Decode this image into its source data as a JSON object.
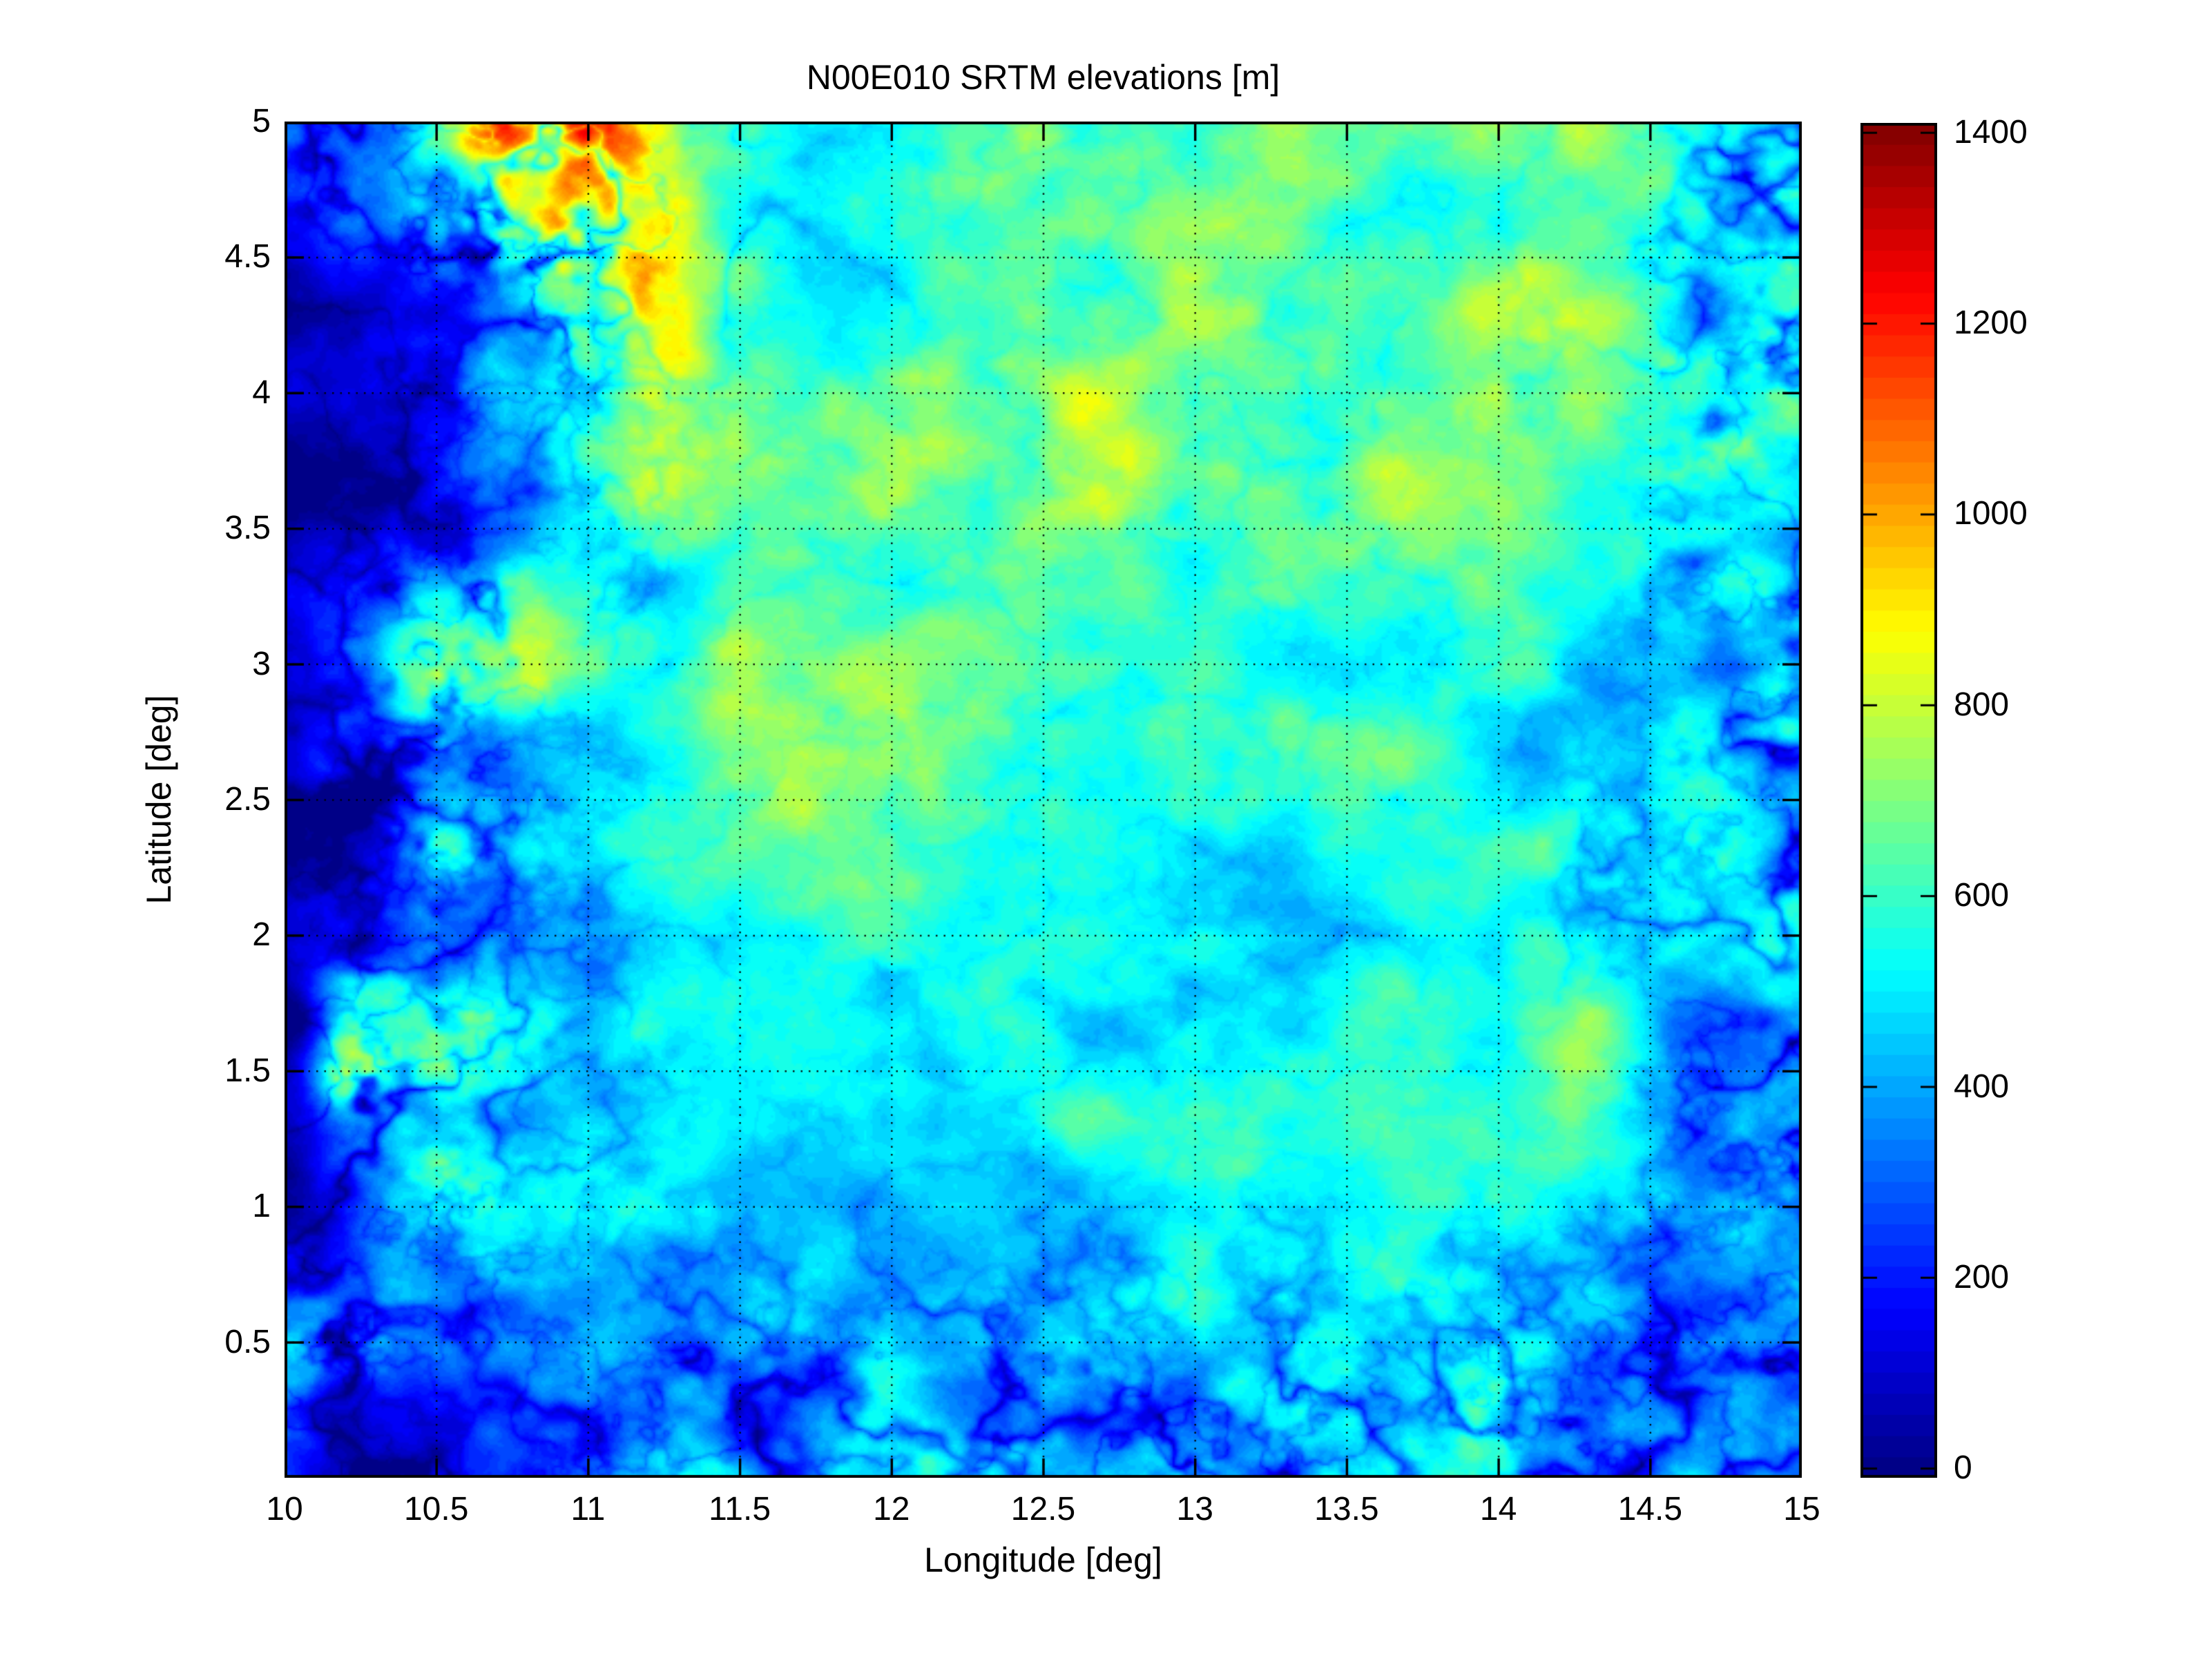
{
  "figure": {
    "background_color": "#ffffff",
    "text_color": "#000000"
  },
  "chart_data": {
    "type": "heatmap",
    "title": "N00E010 SRTM elevations [m]",
    "xlabel": "Longitude [deg]",
    "ylabel": "Latitude [deg]",
    "xlim": [
      10,
      15
    ],
    "ylim": [
      0,
      5
    ],
    "grid": "dotted black, 0.5 deg spacing, on",
    "colormap": "jet (64 discrete bands)",
    "xticks": [
      {
        "value": 10,
        "label": "10"
      },
      {
        "value": 10.5,
        "label": "10.5"
      },
      {
        "value": 11,
        "label": "11"
      },
      {
        "value": 11.5,
        "label": "11.5"
      },
      {
        "value": 12,
        "label": "12"
      },
      {
        "value": 12.5,
        "label": "12.5"
      },
      {
        "value": 13,
        "label": "13"
      },
      {
        "value": 13.5,
        "label": "13.5"
      },
      {
        "value": 14,
        "label": "14"
      },
      {
        "value": 14.5,
        "label": "14.5"
      },
      {
        "value": 15,
        "label": "15"
      }
    ],
    "yticks": [
      {
        "value": 0.5,
        "label": "0.5"
      },
      {
        "value": 1,
        "label": "1"
      },
      {
        "value": 1.5,
        "label": "1.5"
      },
      {
        "value": 2,
        "label": "2"
      },
      {
        "value": 2.5,
        "label": "2.5"
      },
      {
        "value": 3,
        "label": "3"
      },
      {
        "value": 3.5,
        "label": "3.5"
      },
      {
        "value": 4,
        "label": "4"
      },
      {
        "value": 4.5,
        "label": "4.5"
      },
      {
        "value": 5,
        "label": "5"
      }
    ],
    "colorbar": {
      "units": "m",
      "min": 0,
      "max": 1400,
      "displayed_range": [
        -10,
        1410
      ],
      "bands": 64,
      "ticks": [
        {
          "value": 0,
          "label": "0"
        },
        {
          "value": 200,
          "label": "200"
        },
        {
          "value": 400,
          "label": "400"
        },
        {
          "value": 600,
          "label": "600"
        },
        {
          "value": 800,
          "label": "800"
        },
        {
          "value": 1000,
          "label": "1000"
        },
        {
          "value": 1200,
          "label": "1200"
        },
        {
          "value": 1400,
          "label": "1400"
        }
      ]
    },
    "elevation_grid": {
      "comment": "coarse elevations in meters read off the map, lat rows descending 5 to 0, lon cols 10 to 15, 0.25 deg step",
      "lon": [
        10,
        10.25,
        10.5,
        10.75,
        11,
        11.25,
        11.5,
        11.75,
        12,
        12.25,
        12.5,
        12.75,
        13,
        13.25,
        13.5,
        13.75,
        14,
        14.25,
        14.5,
        14.75,
        15
      ],
      "lat": [
        5,
        4.75,
        4.5,
        4.25,
        4,
        3.75,
        3.5,
        3.25,
        3,
        2.75,
        2.5,
        2.25,
        2,
        1.75,
        1.5,
        1.25,
        1,
        0.75,
        0.5,
        0.25,
        0
      ],
      "values_m": [
        [
          420,
          380,
          600,
          1000,
          1100,
          800,
          650,
          560,
          600,
          650,
          680,
          700,
          700,
          680,
          660,
          680,
          720,
          700,
          660,
          640,
          600
        ],
        [
          200,
          250,
          400,
          800,
          1050,
          850,
          600,
          520,
          560,
          620,
          660,
          680,
          680,
          660,
          650,
          660,
          700,
          680,
          640,
          600,
          560
        ],
        [
          120,
          200,
          350,
          700,
          950,
          900,
          580,
          480,
          540,
          600,
          640,
          660,
          660,
          650,
          640,
          660,
          690,
          660,
          620,
          570,
          520
        ],
        [
          80,
          150,
          280,
          500,
          750,
          820,
          560,
          500,
          550,
          600,
          640,
          680,
          700,
          660,
          650,
          680,
          700,
          720,
          620,
          560,
          500
        ],
        [
          60,
          120,
          220,
          400,
          650,
          780,
          700,
          600,
          640,
          660,
          700,
          720,
          700,
          700,
          700,
          710,
          720,
          700,
          640,
          560,
          480
        ],
        [
          50,
          100,
          180,
          350,
          600,
          750,
          720,
          660,
          660,
          680,
          700,
          720,
          720,
          710,
          700,
          700,
          700,
          680,
          620,
          540,
          470
        ],
        [
          50,
          90,
          160,
          300,
          550,
          700,
          680,
          640,
          650,
          660,
          680,
          700,
          700,
          690,
          680,
          670,
          650,
          620,
          580,
          510,
          450
        ],
        [
          60,
          150,
          400,
          750,
          620,
          560,
          650,
          660,
          650,
          650,
          660,
          670,
          680,
          670,
          650,
          630,
          610,
          580,
          540,
          490,
          450
        ],
        [
          80,
          300,
          650,
          700,
          520,
          520,
          750,
          700,
          680,
          670,
          660,
          650,
          650,
          640,
          620,
          600,
          580,
          550,
          510,
          460,
          430
        ],
        [
          70,
          280,
          600,
          520,
          480,
          550,
          700,
          720,
          700,
          700,
          680,
          650,
          630,
          620,
          600,
          580,
          560,
          540,
          510,
          470,
          440
        ],
        [
          60,
          250,
          550,
          480,
          490,
          560,
          650,
          700,
          680,
          660,
          640,
          620,
          600,
          590,
          570,
          550,
          540,
          550,
          540,
          470,
          430
        ],
        [
          50,
          180,
          480,
          470,
          500,
          540,
          580,
          620,
          620,
          610,
          590,
          580,
          560,
          550,
          540,
          530,
          540,
          620,
          460,
          420,
          430
        ],
        [
          40,
          130,
          380,
          440,
          490,
          520,
          550,
          570,
          570,
          560,
          560,
          550,
          540,
          530,
          520,
          520,
          530,
          640,
          440,
          400,
          450
        ],
        [
          40,
          500,
          500,
          460,
          480,
          510,
          530,
          550,
          550,
          540,
          540,
          530,
          540,
          560,
          540,
          560,
          540,
          660,
          480,
          430,
          460
        ],
        [
          150,
          900,
          620,
          480,
          500,
          510,
          520,
          530,
          530,
          520,
          530,
          540,
          560,
          600,
          550,
          540,
          560,
          680,
          500,
          450,
          470
        ],
        [
          80,
          450,
          620,
          540,
          520,
          530,
          530,
          520,
          510,
          510,
          520,
          530,
          550,
          570,
          545,
          560,
          600,
          650,
          520,
          470,
          480
        ],
        [
          50,
          250,
          520,
          550,
          520,
          520,
          530,
          500,
          450,
          470,
          490,
          520,
          540,
          560,
          540,
          550,
          560,
          540,
          510,
          480,
          460
        ],
        [
          300,
          250,
          350,
          490,
          500,
          470,
          480,
          460,
          430,
          450,
          470,
          500,
          510,
          520,
          530,
          540,
          540,
          500,
          470,
          450,
          430
        ],
        [
          450,
          400,
          280,
          330,
          420,
          440,
          450,
          430,
          420,
          440,
          460,
          480,
          490,
          500,
          510,
          520,
          510,
          470,
          440,
          430,
          420
        ],
        [
          250,
          150,
          150,
          250,
          350,
          400,
          420,
          400,
          410,
          430,
          450,
          470,
          480,
          490,
          500,
          500,
          490,
          450,
          420,
          410,
          400
        ],
        [
          200,
          150,
          120,
          200,
          300,
          370,
          400,
          410,
          420,
          440,
          460,
          470,
          480,
          480,
          490,
          490,
          480,
          430,
          410,
          400,
          390
        ]
      ]
    },
    "texture": {
      "noise_seed": 7,
      "river_seed_1": 31,
      "river_seed_2": 53,
      "seam_seed": 77,
      "rough_regions": "heavily dissected: west coastal strip, south, east edge, northwest mountains"
    }
  }
}
